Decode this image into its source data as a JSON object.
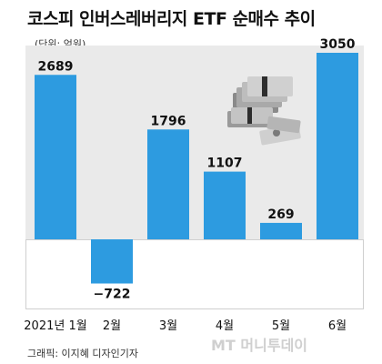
{
  "title": "코스피 인버스레버리지 ETF 순매수 추이",
  "unit": "(단위: 억원)",
  "credit": "그래픽: 이지혜 디자인기자",
  "watermark": "MT 머니투데이",
  "colors": {
    "bar": "#2d9be0",
    "plot_background": "#eaeaea",
    "text": "#111111"
  },
  "icon": "money-stack-icon",
  "chart_data": {
    "type": "bar",
    "title": "코스피 인버스레버리지 ETF 순매수 추이",
    "unit": "억원",
    "categories": [
      "2021년 1월",
      "2월",
      "3월",
      "4월",
      "5월",
      "6월"
    ],
    "values": [
      2689,
      -722,
      1796,
      1107,
      269,
      3050
    ],
    "ylim": [
      -1100,
      3450
    ],
    "grid": false,
    "legend": "none"
  }
}
